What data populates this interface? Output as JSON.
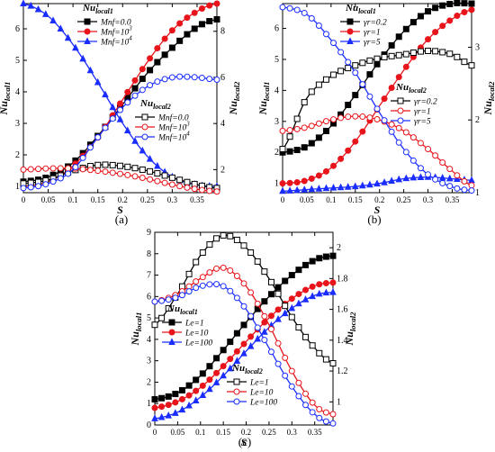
{
  "figure": {
    "panel_captions": [
      "(a)",
      "(b)",
      "(c)"
    ]
  },
  "chart_data": [
    {
      "type": "line",
      "panel": "(a)",
      "xlabel": "S",
      "ylabel_left": "Nu_local1",
      "ylabel_right": "Nu_local2",
      "xlim": [
        0,
        0.39
      ],
      "ylim_left": [
        0.8,
        6.8
      ],
      "ylim_right": [
        1,
        9.2
      ],
      "x_ticks": [
        "0",
        "0.05",
        "0.1",
        "0.15",
        "0.2",
        "0.25",
        "0.3",
        "0.35"
      ],
      "y_ticks_left": [
        "1",
        "2",
        "3",
        "4",
        "5",
        "6"
      ],
      "y_ticks_right": [
        "2",
        "4",
        "6",
        "8"
      ],
      "legend_title_1": "Nu_local1",
      "legend_title_2": "Nu_local2",
      "series": [
        {
          "name": "Mnf=0.0",
          "group": "Nu_local1",
          "axis": "left",
          "color": "#000000",
          "marker": "square-filled",
          "x": [
            0,
            0.05,
            0.1,
            0.15,
            0.2,
            0.25,
            0.3,
            0.35,
            0.39
          ],
          "values": [
            1.15,
            1.3,
            1.75,
            2.6,
            3.6,
            4.6,
            5.4,
            6.05,
            6.3
          ]
        },
        {
          "name": "Mnf=10^3",
          "group": "Nu_local1",
          "axis": "left",
          "color": "#e8141b",
          "marker": "circle-filled",
          "x": [
            0,
            0.05,
            0.1,
            0.15,
            0.2,
            0.25,
            0.3,
            0.35,
            0.39
          ],
          "values": [
            1.0,
            1.15,
            1.65,
            2.55,
            3.75,
            4.95,
            5.95,
            6.55,
            6.8
          ]
        },
        {
          "name": "Mnf=10^4",
          "group": "Nu_local1",
          "axis": "left",
          "color": "#1a2dff",
          "marker": "triangle-filled",
          "x": [
            0,
            0.05,
            0.1,
            0.15,
            0.2,
            0.25,
            0.3,
            0.35,
            0.39
          ],
          "values": [
            6.8,
            6.4,
            5.5,
            4.3,
            3.0,
            1.95,
            1.3,
            1.05,
            1.0
          ]
        },
        {
          "name": "Mnf=0.0",
          "group": "Nu_local2",
          "axis": "right",
          "color": "#000000",
          "marker": "square-open",
          "x": [
            0,
            0.05,
            0.1,
            0.15,
            0.2,
            0.25,
            0.3,
            0.35,
            0.39
          ],
          "values": [
            1.4,
            1.55,
            1.95,
            2.2,
            2.15,
            1.95,
            1.65,
            1.35,
            1.2
          ]
        },
        {
          "name": "Mnf=10^3",
          "group": "Nu_local2",
          "axis": "right",
          "color": "#e8141b",
          "marker": "circle-open",
          "x": [
            0,
            0.05,
            0.1,
            0.15,
            0.2,
            0.25,
            0.3,
            0.35,
            0.39
          ],
          "values": [
            2.0,
            2.05,
            2.05,
            1.95,
            1.8,
            1.6,
            1.35,
            1.15,
            1.05
          ]
        },
        {
          "name": "Mnf=10^4",
          "group": "Nu_local2",
          "axis": "right",
          "color": "#1a2dff",
          "marker": "circle-open",
          "x": [
            0,
            0.05,
            0.1,
            0.15,
            0.2,
            0.25,
            0.3,
            0.35,
            0.39
          ],
          "values": [
            1.2,
            1.4,
            2.0,
            3.4,
            4.7,
            5.6,
            6.0,
            6.0,
            5.9
          ]
        }
      ]
    },
    {
      "type": "line",
      "panel": "(b)",
      "xlabel": "S",
      "ylabel_left": "Nu_local1",
      "ylabel_right": "Nu_local2",
      "xlim": [
        0,
        0.39
      ],
      "ylim_left": [
        0.7,
        6.8
      ],
      "ylim_right": [
        1,
        3.6
      ],
      "x_ticks": [
        "0",
        "0.05",
        "0.1",
        "0.15",
        "0.2",
        "0.25",
        "0.3",
        "0.35"
      ],
      "y_ticks_left": [
        "1",
        "2",
        "3",
        "4",
        "5",
        "6"
      ],
      "y_ticks_right": [
        "1",
        "2",
        "3"
      ],
      "legend_title_1": "Nu_local1",
      "legend_title_2": "Nu_local2",
      "series": [
        {
          "name": "γr=0.2",
          "group": "Nu_local1",
          "axis": "left",
          "color": "#000000",
          "marker": "square-filled",
          "x": [
            0,
            0.05,
            0.1,
            0.15,
            0.2,
            0.25,
            0.3,
            0.35,
            0.39
          ],
          "values": [
            2.0,
            2.2,
            2.85,
            3.85,
            4.95,
            5.9,
            6.55,
            6.8,
            6.8
          ]
        },
        {
          "name": "γr=1",
          "group": "Nu_local1",
          "axis": "left",
          "color": "#e8141b",
          "marker": "circle-filled",
          "x": [
            0,
            0.05,
            0.1,
            0.15,
            0.2,
            0.25,
            0.3,
            0.35,
            0.39
          ],
          "values": [
            1.0,
            1.1,
            1.5,
            2.35,
            3.5,
            4.65,
            5.65,
            6.3,
            6.6
          ]
        },
        {
          "name": "γr=5",
          "group": "Nu_local1",
          "axis": "left",
          "color": "#1a2dff",
          "marker": "triangle-filled",
          "x": [
            0,
            0.05,
            0.1,
            0.15,
            0.2,
            0.25,
            0.3,
            0.35,
            0.39
          ],
          "values": [
            0.75,
            0.8,
            0.85,
            0.9,
            1.0,
            1.15,
            1.2,
            1.15,
            1.1
          ]
        },
        {
          "name": "γr=0.2",
          "group": "Nu_local2",
          "axis": "right",
          "color": "#000000",
          "marker": "square-open",
          "x": [
            0,
            0.05,
            0.1,
            0.15,
            0.2,
            0.25,
            0.3,
            0.35,
            0.39
          ],
          "values": [
            1.6,
            2.3,
            2.6,
            2.75,
            2.85,
            2.9,
            2.95,
            2.9,
            2.75
          ]
        },
        {
          "name": "γr=1",
          "group": "Nu_local2",
          "axis": "right",
          "color": "#e8141b",
          "marker": "circle-open",
          "x": [
            0,
            0.05,
            0.1,
            0.15,
            0.2,
            0.25,
            0.3,
            0.35,
            0.39
          ],
          "values": [
            1.85,
            1.9,
            2.0,
            2.05,
            2.0,
            1.85,
            1.6,
            1.3,
            1.1
          ]
        },
        {
          "name": "γr=5",
          "group": "Nu_local2",
          "axis": "right",
          "color": "#1a2dff",
          "marker": "circle-open",
          "x": [
            0,
            0.05,
            0.1,
            0.15,
            0.2,
            0.25,
            0.3,
            0.35,
            0.39
          ],
          "values": [
            3.55,
            3.45,
            3.1,
            2.65,
            2.1,
            1.6,
            1.25,
            1.08,
            1.03
          ]
        }
      ]
    },
    {
      "type": "line",
      "panel": "(c)",
      "xlabel": "S",
      "ylabel_left": "Nu_local1",
      "ylabel_right": "Nu_local2",
      "xlim": [
        0,
        0.39
      ],
      "ylim_left": [
        0,
        9
      ],
      "ylim_right": [
        0.85,
        2.1
      ],
      "x_ticks": [
        "0",
        "0.05",
        "0.1",
        "0.15",
        "0.2",
        "0.25",
        "0.3",
        "0.35"
      ],
      "y_ticks_left": [
        "0",
        "1",
        "2",
        "3",
        "4",
        "5",
        "6",
        "7",
        "8",
        "9"
      ],
      "y_ticks_right": [
        "1",
        "1.2",
        "1.4",
        "1.6",
        "1.8",
        "2"
      ],
      "legend_title_1": "Nu_local1",
      "legend_title_2": "Nu_local2",
      "series": [
        {
          "name": "Le=1",
          "group": "Nu_local1",
          "axis": "left",
          "color": "#000000",
          "marker": "square-filled",
          "x": [
            0,
            0.05,
            0.1,
            0.15,
            0.2,
            0.25,
            0.3,
            0.35,
            0.39
          ],
          "values": [
            1.2,
            1.5,
            2.3,
            3.5,
            4.8,
            6.0,
            7.0,
            7.7,
            7.9
          ]
        },
        {
          "name": "Le=10",
          "group": "Nu_local1",
          "axis": "left",
          "color": "#e8141b",
          "marker": "circle-filled",
          "x": [
            0,
            0.05,
            0.1,
            0.15,
            0.2,
            0.25,
            0.3,
            0.35,
            0.39
          ],
          "values": [
            0.8,
            1.1,
            1.75,
            2.75,
            3.9,
            5.0,
            5.9,
            6.5,
            6.65
          ]
        },
        {
          "name": "Le=100",
          "group": "Nu_local1",
          "axis": "left",
          "color": "#1a2dff",
          "marker": "triangle-filled",
          "x": [
            0,
            0.05,
            0.1,
            0.15,
            0.2,
            0.25,
            0.3,
            0.35,
            0.39
          ],
          "values": [
            0.3,
            0.6,
            1.3,
            2.3,
            3.45,
            4.55,
            5.45,
            6.05,
            6.2
          ]
        },
        {
          "name": "Le=1",
          "group": "Nu_local2",
          "axis": "right",
          "color": "#000000",
          "marker": "square-open",
          "x": [
            0,
            0.05,
            0.1,
            0.15,
            0.2,
            0.25,
            0.3,
            0.35,
            0.39
          ],
          "values": [
            1.5,
            1.7,
            1.95,
            2.08,
            2.0,
            1.8,
            1.55,
            1.35,
            1.25
          ]
        },
        {
          "name": "Le=10",
          "group": "Nu_local2",
          "axis": "right",
          "color": "#e8141b",
          "marker": "circle-open",
          "x": [
            0,
            0.05,
            0.1,
            0.15,
            0.2,
            0.25,
            0.3,
            0.35,
            0.39
          ],
          "values": [
            1.65,
            1.7,
            1.8,
            1.87,
            1.75,
            1.5,
            1.2,
            0.98,
            0.92
          ]
        },
        {
          "name": "Le=100",
          "group": "Nu_local2",
          "axis": "right",
          "color": "#1a2dff",
          "marker": "circle-open",
          "x": [
            0,
            0.05,
            0.1,
            0.15,
            0.2,
            0.25,
            0.3,
            0.35,
            0.39
          ],
          "values": [
            1.65,
            1.68,
            1.75,
            1.75,
            1.6,
            1.35,
            1.1,
            0.92,
            0.86
          ]
        }
      ]
    }
  ]
}
